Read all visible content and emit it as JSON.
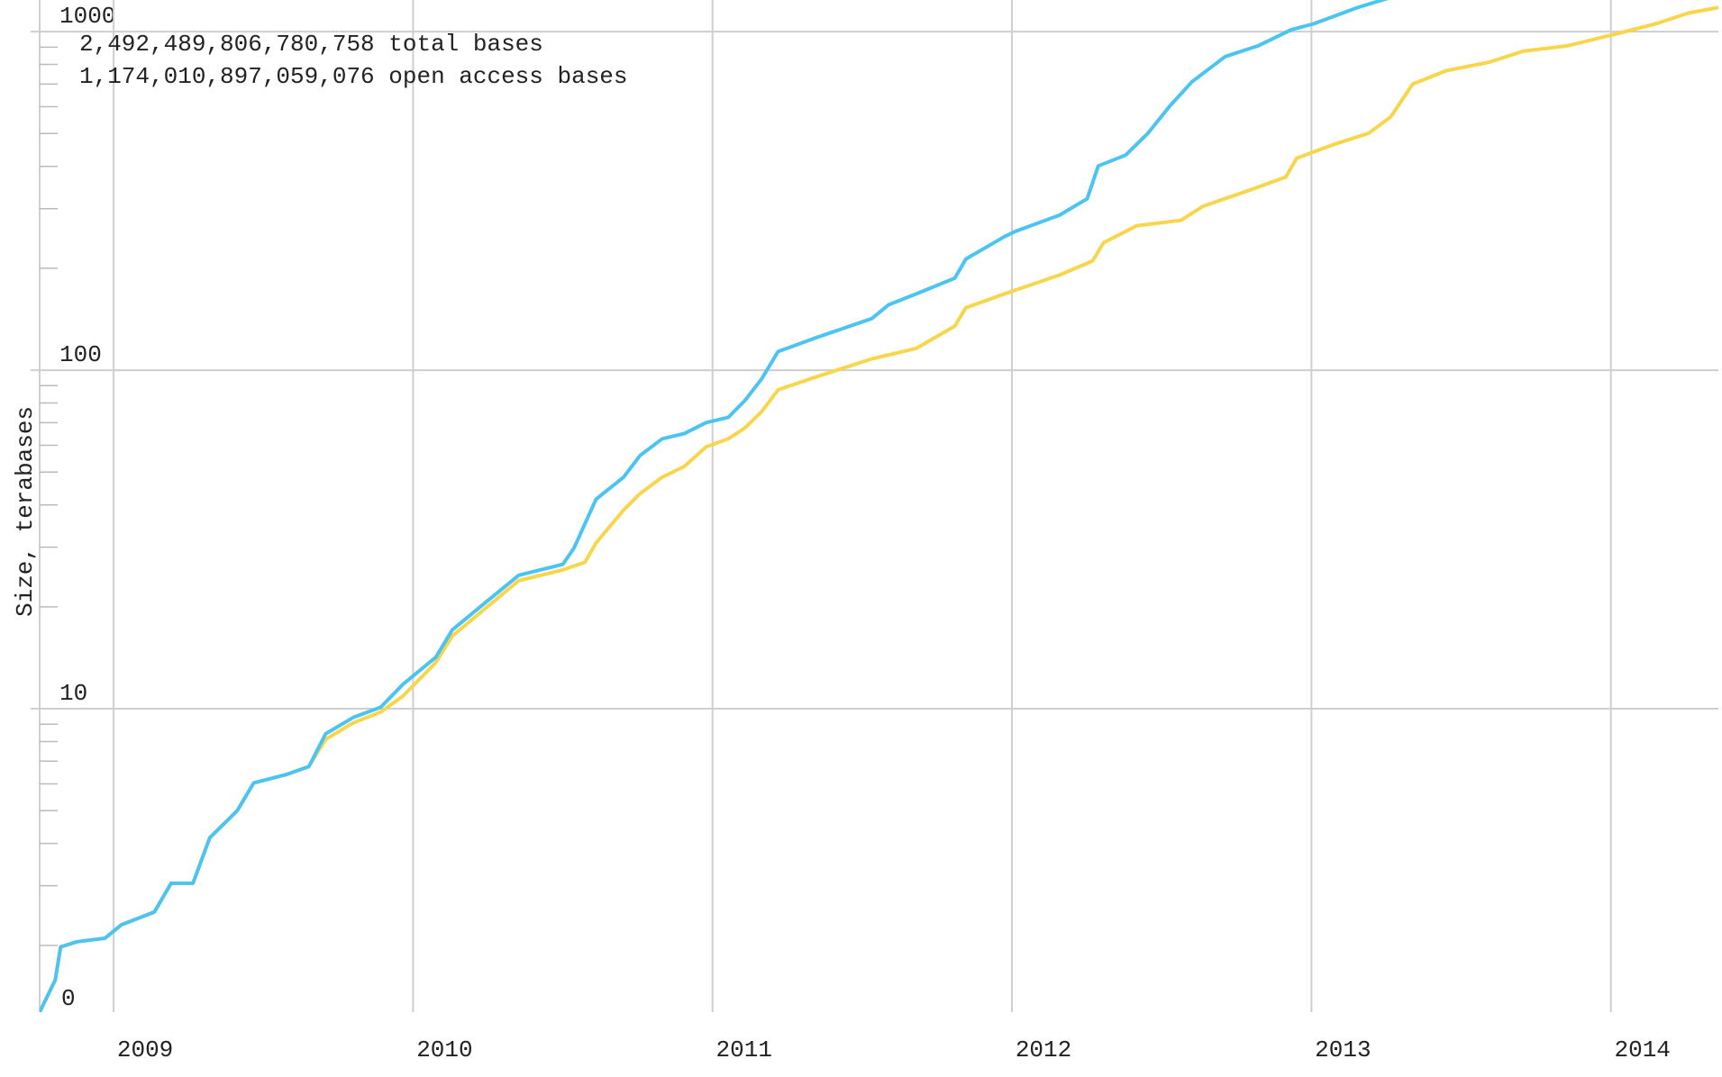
{
  "chart_data": {
    "type": "line",
    "y_label": "Size, terabases",
    "y_min_label": "0",
    "log_y": true,
    "grid": true,
    "legend": "top-left",
    "xlim": [
      2008.753,
      2014.359
    ],
    "xticks": [
      2009,
      2010,
      2011,
      2012,
      2013,
      2014
    ],
    "ylim": [
      1.27,
      1240
    ],
    "yticks": [
      10,
      100,
      1000
    ],
    "yminorticks": [
      2,
      3,
      4,
      5,
      6,
      7,
      8,
      9,
      20,
      30,
      40,
      50,
      60,
      70,
      80,
      90,
      200,
      300,
      400,
      500,
      600,
      700,
      800,
      900
    ],
    "series": [
      {
        "name": "2,492,489,806,780,758 total bases",
        "color": "#4cc4f2",
        "x": [
          2008.753,
          2008.805,
          2008.823,
          2008.878,
          2008.971,
          2009.026,
          2009.136,
          2009.192,
          2009.265,
          2009.321,
          2009.413,
          2009.468,
          2009.579,
          2009.652,
          2009.708,
          2009.8,
          2009.892,
          2009.966,
          2010.076,
          2010.131,
          2010.242,
          2010.353,
          2010.5,
          2010.537,
          2010.611,
          2010.703,
          2010.758,
          2010.832,
          2010.906,
          2010.979,
          2011.053,
          2011.108,
          2011.164,
          2011.219,
          2011.348,
          2011.532,
          2011.588,
          2011.68,
          2011.809,
          2011.846,
          2011.975,
          2012.011,
          2012.159,
          2012.251,
          2012.288,
          2012.38,
          2012.454,
          2012.528,
          2012.601,
          2012.712,
          2012.822,
          2012.933,
          2013.007,
          2013.154,
          2013.272
        ],
        "values": [
          1.27,
          1.58,
          1.98,
          2.05,
          2.1,
          2.3,
          2.51,
          3.05,
          3.05,
          4.16,
          5.0,
          6.04,
          6.4,
          6.75,
          8.43,
          9.42,
          10.1,
          11.8,
          14.2,
          17.1,
          20.6,
          24.8,
          26.7,
          29.8,
          41.6,
          48.3,
          56.0,
          62.7,
          65.0,
          70.0,
          72.6,
          81.3,
          94.2,
          113.5,
          125,
          142,
          156,
          168,
          187,
          213,
          248,
          257,
          287,
          321,
          401,
          432,
          501,
          604,
          711,
          844,
          908,
          1014,
          1054,
          1178,
          1268
        ]
      },
      {
        "name": "1,174,010,897,059,076 open access bases",
        "color": "#f8d64c",
        "x": [
          2008.753,
          2008.805,
          2008.823,
          2008.878,
          2008.971,
          2009.026,
          2009.136,
          2009.192,
          2009.265,
          2009.321,
          2009.413,
          2009.468,
          2009.579,
          2009.652,
          2009.708,
          2009.8,
          2009.892,
          2009.966,
          2010.076,
          2010.131,
          2010.242,
          2010.353,
          2010.5,
          2010.574,
          2010.611,
          2010.703,
          2010.758,
          2010.832,
          2010.906,
          2010.979,
          2011.053,
          2011.108,
          2011.164,
          2011.219,
          2011.348,
          2011.532,
          2011.68,
          2011.809,
          2011.846,
          2011.975,
          2012.159,
          2012.269,
          2012.306,
          2012.417,
          2012.564,
          2012.638,
          2012.785,
          2012.914,
          2012.951,
          2013.08,
          2013.191,
          2013.265,
          2013.338,
          2013.449,
          2013.596,
          2013.707,
          2013.854,
          2014.002,
          2014.149,
          2014.26,
          2014.359
        ],
        "values": [
          1.27,
          1.58,
          1.98,
          2.05,
          2.1,
          2.3,
          2.51,
          3.05,
          3.05,
          4.16,
          5.0,
          6.04,
          6.4,
          6.75,
          8.12,
          9.08,
          9.78,
          10.9,
          13.7,
          16.4,
          19.8,
          23.9,
          25.7,
          27.1,
          30.9,
          38.6,
          43.2,
          48.3,
          52.0,
          59.4,
          62.7,
          67.5,
          75.4,
          87.5,
          95.7,
          108,
          116,
          135,
          153,
          168,
          191,
          210,
          238,
          267,
          277,
          305,
          338,
          372,
          423,
          466,
          501,
          560,
          700,
          766,
          813,
          875,
          908,
          977,
          1054,
          1135,
          1178
        ]
      }
    ]
  }
}
